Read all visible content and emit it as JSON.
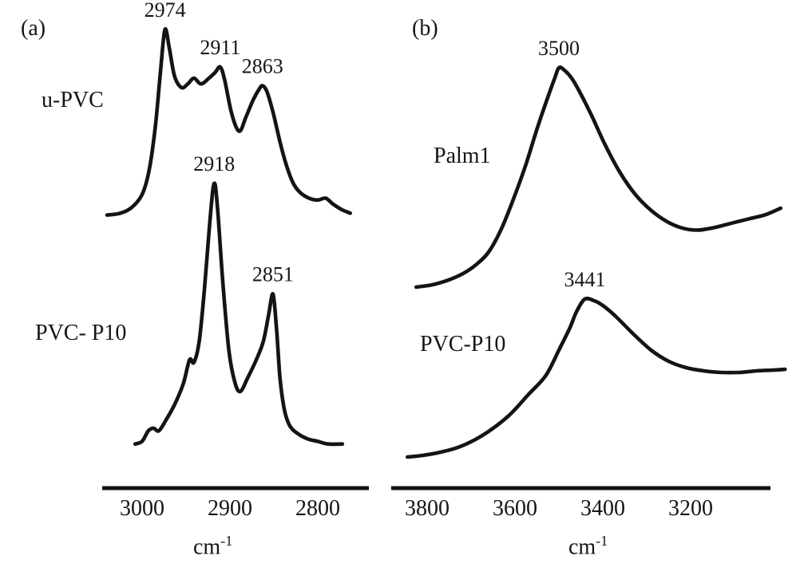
{
  "figure": {
    "panel_a_tag": "(a)",
    "panel_b_tag": "(b)"
  },
  "colors": {
    "curve": "#141414",
    "axis": "#111111",
    "background": "#ffffff"
  },
  "chart_data": [
    {
      "type": "line",
      "panel": "a",
      "title": "",
      "xlabel_base": "cm",
      "xlabel_exp": "-1",
      "x_axis": {
        "direction": "decreasing",
        "range": [
          3045,
          2740
        ],
        "ticks": [
          {
            "value": 3000,
            "label": "3000"
          },
          {
            "value": 2900,
            "label": "2900"
          },
          {
            "value": 2800,
            "label": "2800"
          }
        ]
      },
      "grid": false,
      "legend": "inline-labels",
      "series": [
        {
          "name": "u-PVC",
          "peaks": [
            {
              "x": 2974,
              "label": "2974"
            },
            {
              "x": 2911,
              "label": "2911"
            },
            {
              "x": 2863,
              "label": "2863"
            }
          ],
          "points": [
            [
              3040,
              0.01
            ],
            [
              3025,
              0.02
            ],
            [
              3012,
              0.05
            ],
            [
              3000,
              0.12
            ],
            [
              2992,
              0.25
            ],
            [
              2985,
              0.48
            ],
            [
              2979,
              0.78
            ],
            [
              2974,
              1.0
            ],
            [
              2969,
              0.9
            ],
            [
              2963,
              0.75
            ],
            [
              2955,
              0.69
            ],
            [
              2948,
              0.71
            ],
            [
              2941,
              0.74
            ],
            [
              2933,
              0.71
            ],
            [
              2924,
              0.74
            ],
            [
              2917,
              0.77
            ],
            [
              2911,
              0.8
            ],
            [
              2906,
              0.73
            ],
            [
              2899,
              0.57
            ],
            [
              2893,
              0.48
            ],
            [
              2888,
              0.46
            ],
            [
              2882,
              0.53
            ],
            [
              2874,
              0.62
            ],
            [
              2867,
              0.68
            ],
            [
              2863,
              0.7
            ],
            [
              2858,
              0.67
            ],
            [
              2851,
              0.56
            ],
            [
              2843,
              0.4
            ],
            [
              2836,
              0.28
            ],
            [
              2828,
              0.18
            ],
            [
              2820,
              0.13
            ],
            [
              2810,
              0.1
            ],
            [
              2800,
              0.09
            ],
            [
              2791,
              0.1
            ],
            [
              2783,
              0.07
            ],
            [
              2773,
              0.04
            ],
            [
              2763,
              0.02
            ]
          ]
        },
        {
          "name": "PVC- P10",
          "peaks": [
            {
              "x": 2918,
              "label": "2918"
            },
            {
              "x": 2851,
              "label": "2851"
            }
          ],
          "points": [
            [
              3008,
              0.01
            ],
            [
              3000,
              0.02
            ],
            [
              2993,
              0.06
            ],
            [
              2987,
              0.07
            ],
            [
              2981,
              0.06
            ],
            [
              2973,
              0.1
            ],
            [
              2963,
              0.16
            ],
            [
              2953,
              0.24
            ],
            [
              2946,
              0.33
            ],
            [
              2941,
              0.32
            ],
            [
              2935,
              0.4
            ],
            [
              2929,
              0.6
            ],
            [
              2923,
              0.85
            ],
            [
              2918,
              1.0
            ],
            [
              2914,
              0.9
            ],
            [
              2908,
              0.62
            ],
            [
              2901,
              0.36
            ],
            [
              2894,
              0.24
            ],
            [
              2888,
              0.21
            ],
            [
              2880,
              0.26
            ],
            [
              2870,
              0.33
            ],
            [
              2862,
              0.4
            ],
            [
              2856,
              0.5
            ],
            [
              2851,
              0.58
            ],
            [
              2847,
              0.45
            ],
            [
              2843,
              0.26
            ],
            [
              2838,
              0.14
            ],
            [
              2832,
              0.08
            ],
            [
              2823,
              0.05
            ],
            [
              2812,
              0.03
            ],
            [
              2800,
              0.02
            ],
            [
              2788,
              0.01
            ],
            [
              2772,
              0.01
            ]
          ]
        }
      ]
    },
    {
      "type": "line",
      "panel": "b",
      "title": "",
      "xlabel_base": "cm",
      "xlabel_exp": "-1",
      "x_axis": {
        "direction": "decreasing",
        "range": [
          3880,
          3010
        ],
        "ticks": [
          {
            "value": 3800,
            "label": "3800"
          },
          {
            "value": 3600,
            "label": "3600"
          },
          {
            "value": 3400,
            "label": "3400"
          },
          {
            "value": 3200,
            "label": "3200"
          }
        ]
      },
      "grid": false,
      "legend": "inline-labels",
      "series": [
        {
          "name": "Palm1",
          "peaks": [
            {
              "x": 3500,
              "label": "3500"
            }
          ],
          "points": [
            [
              3825,
              0.0
            ],
            [
              3790,
              0.01
            ],
            [
              3755,
              0.03
            ],
            [
              3720,
              0.06
            ],
            [
              3690,
              0.1
            ],
            [
              3660,
              0.16
            ],
            [
              3630,
              0.27
            ],
            [
              3600,
              0.42
            ],
            [
              3575,
              0.56
            ],
            [
              3550,
              0.72
            ],
            [
              3528,
              0.85
            ],
            [
              3510,
              0.95
            ],
            [
              3500,
              1.0
            ],
            [
              3488,
              0.99
            ],
            [
              3470,
              0.95
            ],
            [
              3450,
              0.88
            ],
            [
              3425,
              0.78
            ],
            [
              3395,
              0.65
            ],
            [
              3360,
              0.52
            ],
            [
              3325,
              0.42
            ],
            [
              3290,
              0.35
            ],
            [
              3255,
              0.3
            ],
            [
              3220,
              0.27
            ],
            [
              3185,
              0.26
            ],
            [
              3150,
              0.27
            ],
            [
              3110,
              0.29
            ],
            [
              3070,
              0.31
            ],
            [
              3030,
              0.33
            ],
            [
              2995,
              0.36
            ]
          ]
        },
        {
          "name": "PVC-P10",
          "peaks": [
            {
              "x": 3441,
              "label": "3441"
            }
          ],
          "points": [
            [
              3845,
              0.01
            ],
            [
              3810,
              0.02
            ],
            [
              3770,
              0.04
            ],
            [
              3730,
              0.07
            ],
            [
              3690,
              0.12
            ],
            [
              3650,
              0.19
            ],
            [
              3610,
              0.28
            ],
            [
              3570,
              0.4
            ],
            [
              3530,
              0.52
            ],
            [
              3500,
              0.68
            ],
            [
              3475,
              0.82
            ],
            [
              3460,
              0.92
            ],
            [
              3441,
              1.0
            ],
            [
              3420,
              0.99
            ],
            [
              3400,
              0.96
            ],
            [
              3370,
              0.89
            ],
            [
              3330,
              0.78
            ],
            [
              3290,
              0.68
            ],
            [
              3250,
              0.61
            ],
            [
              3210,
              0.57
            ],
            [
              3170,
              0.55
            ],
            [
              3130,
              0.54
            ],
            [
              3090,
              0.54
            ],
            [
              3050,
              0.55
            ],
            [
              3010,
              0.555
            ],
            [
              2985,
              0.56
            ]
          ]
        }
      ]
    }
  ]
}
